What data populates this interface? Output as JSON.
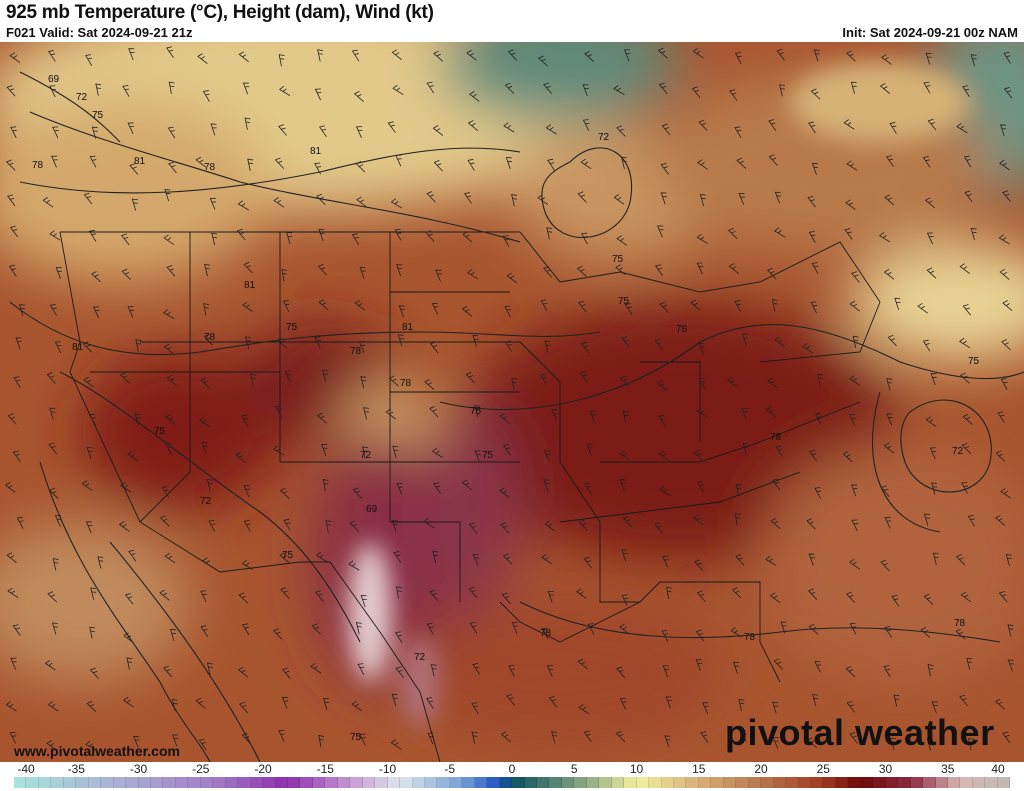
{
  "header": {
    "title": "925 mb Temperature (°C), Height (dam), Wind (kt)",
    "valid": "F021 Valid: Sat 2024-09-21 21z",
    "init": "Init: Sat 2024-09-21 00z NAM"
  },
  "footer": {
    "website": "www.pivotalweather.com",
    "logo": "pivotal weather"
  },
  "colorbar": {
    "units": "°C",
    "min": -40,
    "max": 40,
    "step": 1,
    "tick_labels": [
      "-40",
      "-35",
      "-30",
      "-25",
      "-20",
      "-15",
      "-10",
      "-5",
      "0",
      "5",
      "10",
      "15",
      "20",
      "25",
      "30",
      "35",
      "40"
    ],
    "color_stops": [
      {
        "value": -40,
        "color": "#a8e6dc"
      },
      {
        "value": -32,
        "color": "#aab2d6"
      },
      {
        "value": -24,
        "color": "#a37ec6"
      },
      {
        "value": -18,
        "color": "#8e2eae"
      },
      {
        "value": -13,
        "color": "#c898d4"
      },
      {
        "value": -9,
        "color": "#dde6ec"
      },
      {
        "value": -4,
        "color": "#7aa0d8"
      },
      {
        "value": -1,
        "color": "#1e50c0"
      },
      {
        "value": 0,
        "color": "#0b5060"
      },
      {
        "value": 6,
        "color": "#8eaa84"
      },
      {
        "value": 10,
        "color": "#f2f0a0"
      },
      {
        "value": 15,
        "color": "#d8b078"
      },
      {
        "value": 20,
        "color": "#b8764e"
      },
      {
        "value": 25,
        "color": "#a03a24"
      },
      {
        "value": 28,
        "color": "#6e0a0a"
      },
      {
        "value": 32,
        "color": "#8c2a40"
      },
      {
        "value": 36,
        "color": "#d8b8b4"
      },
      {
        "value": 40,
        "color": "#c0b8b4"
      }
    ]
  },
  "map": {
    "field": "925 mb temperature",
    "contour_labels": [
      {
        "text": "69"
      },
      {
        "text": "72"
      },
      {
        "text": "75"
      },
      {
        "text": "78"
      },
      {
        "text": "81"
      },
      {
        "text": "78"
      },
      {
        "text": "81"
      },
      {
        "text": "72"
      },
      {
        "text": "81"
      },
      {
        "text": "81"
      },
      {
        "text": "75"
      },
      {
        "text": "78"
      },
      {
        "text": "81"
      },
      {
        "text": "78"
      },
      {
        "text": "75"
      },
      {
        "text": "78"
      },
      {
        "text": "75"
      },
      {
        "text": "75"
      },
      {
        "text": "75"
      },
      {
        "text": "72"
      },
      {
        "text": "78"
      },
      {
        "text": "72"
      },
      {
        "text": "78"
      },
      {
        "text": "75"
      },
      {
        "text": "69"
      },
      {
        "text": "75"
      },
      {
        "text": "72"
      },
      {
        "text": "78"
      },
      {
        "text": "78"
      },
      {
        "text": "78"
      },
      {
        "text": "75"
      },
      {
        "text": "72"
      },
      {
        "text": "75"
      }
    ]
  }
}
